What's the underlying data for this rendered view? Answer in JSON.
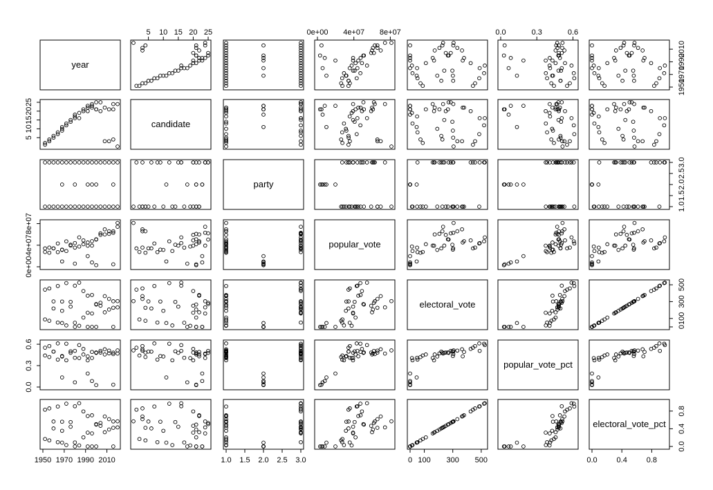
{
  "chart_data": {
    "type": "scatter",
    "title": "",
    "variables": [
      "year",
      "candidate",
      "party",
      "popular_vote",
      "electoral_vote",
      "popular_vote_pct",
      "electoral_vote_pct"
    ],
    "axes": {
      "year": {
        "range": [
          1950,
          2020
        ],
        "ticks": [
          "1950",
          "1970",
          "1990",
          "2010"
        ],
        "tick_values": [
          1950,
          1970,
          1990,
          2010
        ]
      },
      "candidate": {
        "range": [
          0,
          25
        ],
        "ticks": [
          "5",
          "10",
          "15",
          "20",
          "25"
        ],
        "tick_values": [
          5,
          10,
          15,
          20,
          25
        ]
      },
      "party": {
        "range": [
          1,
          3
        ],
        "ticks": [
          "1.0",
          "1.5",
          "2.0",
          "2.5",
          "3.0"
        ],
        "tick_values": [
          1,
          1.5,
          2,
          2.5,
          3
        ]
      },
      "popular_vote": {
        "range": [
          0,
          82000000
        ],
        "ticks": [
          "0e+00",
          "4e+07",
          "8e+07"
        ],
        "tick_values": [
          0,
          40000000,
          80000000
        ]
      },
      "electoral_vote": {
        "range": [
          0,
          525
        ],
        "ticks": [
          "0",
          "100",
          "300",
          "500"
        ],
        "tick_values": [
          0,
          100,
          300,
          500
        ]
      },
      "popular_vote_pct": {
        "range": [
          0,
          0.62
        ],
        "ticks": [
          "0.0",
          "0.3",
          "0.6"
        ],
        "tick_values": [
          0,
          0.3,
          0.6
        ]
      },
      "electoral_vote_pct": {
        "range": [
          0,
          1
        ],
        "ticks": [
          "0.0",
          "0.4",
          "0.8"
        ],
        "tick_values": [
          0,
          0.4,
          0.8
        ]
      }
    },
    "observations": [
      [
        1952,
        1,
        3,
        34075529,
        442,
        0.551,
        0.832
      ],
      [
        1952,
        2,
        1,
        27375090,
        89,
        0.442,
        0.168
      ],
      [
        1956,
        3,
        3,
        35579180,
        457,
        0.574,
        0.861
      ],
      [
        1956,
        4,
        1,
        26028028,
        73,
        0.42,
        0.137
      ],
      [
        1960,
        5,
        1,
        34220984,
        303,
        0.497,
        0.564
      ],
      [
        1960,
        6,
        3,
        34108157,
        219,
        0.496,
        0.408
      ],
      [
        1964,
        7,
        1,
        43127041,
        486,
        0.611,
        0.903
      ],
      [
        1964,
        8,
        3,
        27175754,
        52,
        0.385,
        0.097
      ],
      [
        1968,
        9,
        3,
        31783783,
        301,
        0.434,
        0.559
      ],
      [
        1968,
        10,
        1,
        31271839,
        191,
        0.427,
        0.355
      ],
      [
        1968,
        11,
        2,
        9901118,
        46,
        0.135,
        0.086
      ],
      [
        1972,
        12,
        3,
        47168710,
        520,
        0.607,
        0.967
      ],
      [
        1972,
        13,
        1,
        29173222,
        17,
        0.375,
        0.032
      ],
      [
        1976,
        14,
        1,
        40831881,
        297,
        0.501,
        0.552
      ],
      [
        1976,
        15,
        3,
        39148634,
        240,
        0.48,
        0.446
      ],
      [
        1980,
        16,
        3,
        43903230,
        489,
        0.507,
        0.909
      ],
      [
        1980,
        17,
        1,
        35480115,
        49,
        0.41,
        0.091
      ],
      [
        1980,
        18,
        2,
        5719850,
        0,
        0.066,
        0
      ],
      [
        1984,
        16,
        3,
        54455472,
        525,
        0.588,
        0.976
      ],
      [
        1984,
        19,
        1,
        37577352,
        13,
        0.406,
        0.024
      ],
      [
        1988,
        20,
        3,
        48886597,
        426,
        0.534,
        0.792
      ],
      [
        1988,
        21,
        1,
        41809476,
        111,
        0.456,
        0.206
      ],
      [
        1992,
        22,
        1,
        44909806,
        370,
        0.43,
        0.688
      ],
      [
        1992,
        20,
        3,
        39104550,
        168,
        0.374,
        0.312
      ],
      [
        1992,
        23,
        2,
        19743821,
        0,
        0.189,
        0
      ],
      [
        1996,
        22,
        1,
        47400125,
        379,
        0.492,
        0.704
      ],
      [
        1996,
        24,
        3,
        39198755,
        159,
        0.407,
        0.296
      ],
      [
        1996,
        23,
        2,
        8085402,
        0,
        0.084,
        0
      ],
      [
        2000,
        25,
        3,
        50456002,
        271,
        0.479,
        0.504
      ],
      [
        2000,
        21,
        1,
        50999897,
        266,
        0.484,
        0.494
      ],
      [
        2000,
        21,
        2,
        2882955,
        0,
        0.027,
        0
      ],
      [
        2004,
        25,
        3,
        62040610,
        286,
        0.507,
        0.532
      ],
      [
        2004,
        20,
        1,
        59028444,
        251,
        0.483,
        0.467
      ],
      [
        2008,
        3,
        1,
        69498516,
        365,
        0.529,
        0.678
      ],
      [
        2008,
        22,
        3,
        59948323,
        173,
        0.456,
        0.322
      ],
      [
        2012,
        3,
        1,
        65915795,
        332,
        0.511,
        0.617
      ],
      [
        2012,
        21,
        3,
        60933504,
        206,
        0.472,
        0.383
      ],
      [
        2016,
        24,
        3,
        62984828,
        304,
        0.461,
        0.565
      ],
      [
        2016,
        4,
        1,
        65853514,
        227,
        0.482,
        0.422
      ],
      [
        2016,
        21,
        2,
        4489341,
        0,
        0.033,
        0
      ],
      [
        2020,
        0,
        1,
        81268924,
        306,
        0.513,
        0.569
      ],
      [
        2020,
        24,
        3,
        74216154,
        232,
        0.469,
        0.431
      ]
    ]
  }
}
